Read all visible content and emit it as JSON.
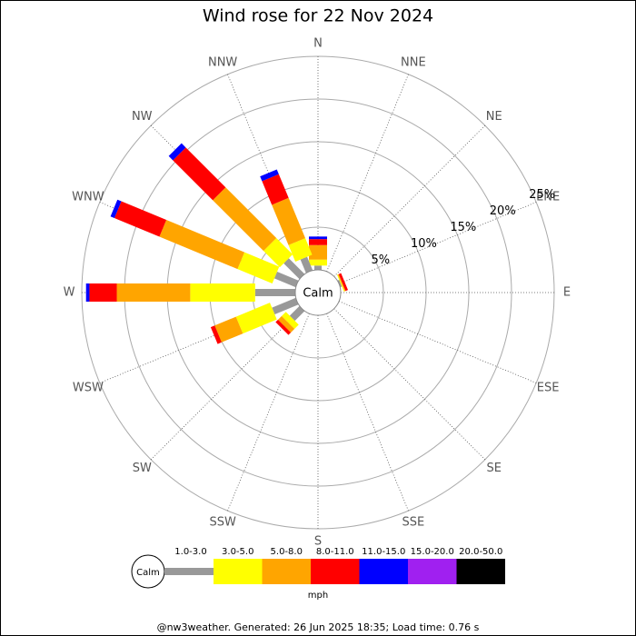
{
  "chart_data": {
    "type": "windrose",
    "title": "Wind rose for 22 Nov 2024",
    "categories": [
      "N",
      "NNE",
      "NE",
      "ENE",
      "E",
      "ESE",
      "SE",
      "SSE",
      "S",
      "SSW",
      "SW",
      "WSW",
      "W",
      "WNW",
      "NW",
      "NNW"
    ],
    "series": [
      {
        "name": "1.0-3.0",
        "color": "#999999",
        "values": [
          0.5,
          0,
          0,
          0.2,
          0,
          0,
          0,
          0,
          0,
          0,
          1.6,
          3.0,
          4.7,
          2.7,
          2.6,
          1.7
        ]
      },
      {
        "name": "3.0-5.0",
        "color": "#ffff00",
        "values": [
          0.7,
          0,
          0,
          0.1,
          0,
          0,
          0,
          0,
          0,
          0,
          0.7,
          4.3,
          7.6,
          4.4,
          2.7,
          2.1
        ]
      },
      {
        "name": "5.0-8.0",
        "color": "#ffa500",
        "values": [
          1.7,
          0,
          0,
          0.1,
          0,
          0,
          0,
          0,
          0,
          0,
          0.6,
          2.7,
          8.6,
          9.9,
          8.4,
          5.1
        ]
      },
      {
        "name": "8.0-11.0",
        "color": "#ff0000",
        "values": [
          0.7,
          0,
          0,
          0.3,
          0,
          0,
          0,
          0,
          0,
          0,
          0.4,
          0.5,
          3.2,
          5.7,
          6.6,
          3.0
        ]
      },
      {
        "name": "11.0-15.0",
        "color": "#0000ff",
        "values": [
          0.3,
          0,
          0,
          0,
          0,
          0,
          0,
          0,
          0,
          0,
          0,
          0,
          0.4,
          0.5,
          0.7,
          0.6
        ]
      },
      {
        "name": "15.0-20.0",
        "color": "#a020f0",
        "values": [
          0,
          0,
          0,
          0,
          0,
          0,
          0,
          0,
          0,
          0,
          0,
          0,
          0,
          0,
          0,
          0
        ]
      },
      {
        "name": "20.0-50.0",
        "color": "#000000",
        "values": [
          0,
          0,
          0,
          0,
          0,
          0,
          0,
          0,
          0,
          0,
          0,
          0,
          0,
          0,
          0,
          0
        ]
      }
    ],
    "rlim": [
      0,
      25
    ],
    "rticks": [
      {
        "value": 5,
        "label": "5%"
      },
      {
        "value": 10,
        "label": "10%"
      },
      {
        "value": 15,
        "label": "15%"
      },
      {
        "value": 20,
        "label": "20%"
      },
      {
        "value": 25,
        "label": "25%"
      }
    ],
    "calm_label": "Calm",
    "unit": "mph",
    "footer": "@nw3weather. Generated: 26 Jun 2025 18:35; Load time: 0.76 s"
  }
}
